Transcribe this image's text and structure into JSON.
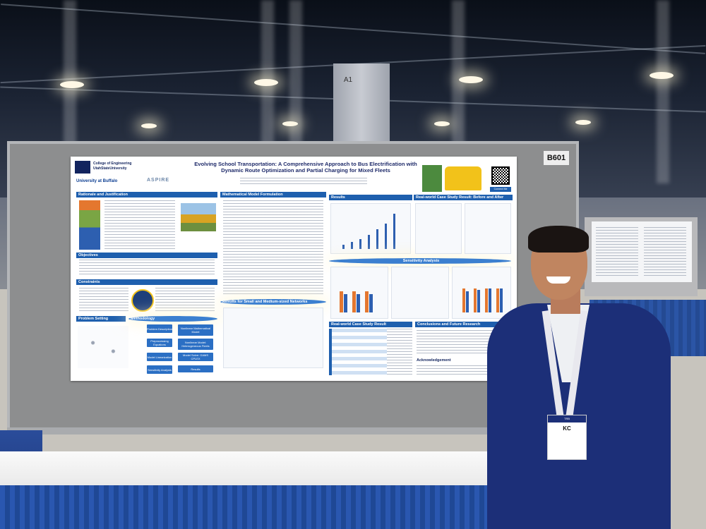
{
  "booth": {
    "number": "B601"
  },
  "column_sign": "A1",
  "poster": {
    "title_line1": "Evolving School Transportation: A Comprehensive Approach to Bus Electrification with",
    "title_line2": "Dynamic Route Optimization and Partial Charging for Mixed Fleets",
    "college": "College of Engineering",
    "university1": "UtahStateUniversity",
    "university2": "University at Buffalo",
    "center": "ASPIRE",
    "sections": {
      "rationale": "Rationale and Justification",
      "objectives": "Objectives",
      "constraints": "Constraints",
      "problem_setting": "Problem Setting",
      "methodology": "Methodology",
      "math_model": "Mathematical Model Formulation",
      "results": "Results",
      "small_medium": "Results for Small and Medium-sized Networks",
      "real_world_before_after": "Real-world Case Study Result: Before and After",
      "sensitivity": "Sensitivity Analysis",
      "real_world": "Real-world Case Study Result",
      "conclusions": "Conclusions and Future Research",
      "acknowledgement": "Acknowledgement"
    },
    "method_boxes": [
      "Problem Description",
      "Nonlinear Mathematical Model",
      "Preprocessing Equations",
      "Nonlinear Model: Heterogeneous Fleets",
      "Model Linearization",
      "Model Solve: GAMS CPLEX",
      "Sensitivity Analysis",
      "Results"
    ],
    "qr_label": "Connect Me"
  },
  "badge": {
    "header": "TRB",
    "name": "KC"
  },
  "colors": {
    "poster_blue": "#1e5fae",
    "jacket": "#1c2f78",
    "drape": "#2a57b0"
  }
}
